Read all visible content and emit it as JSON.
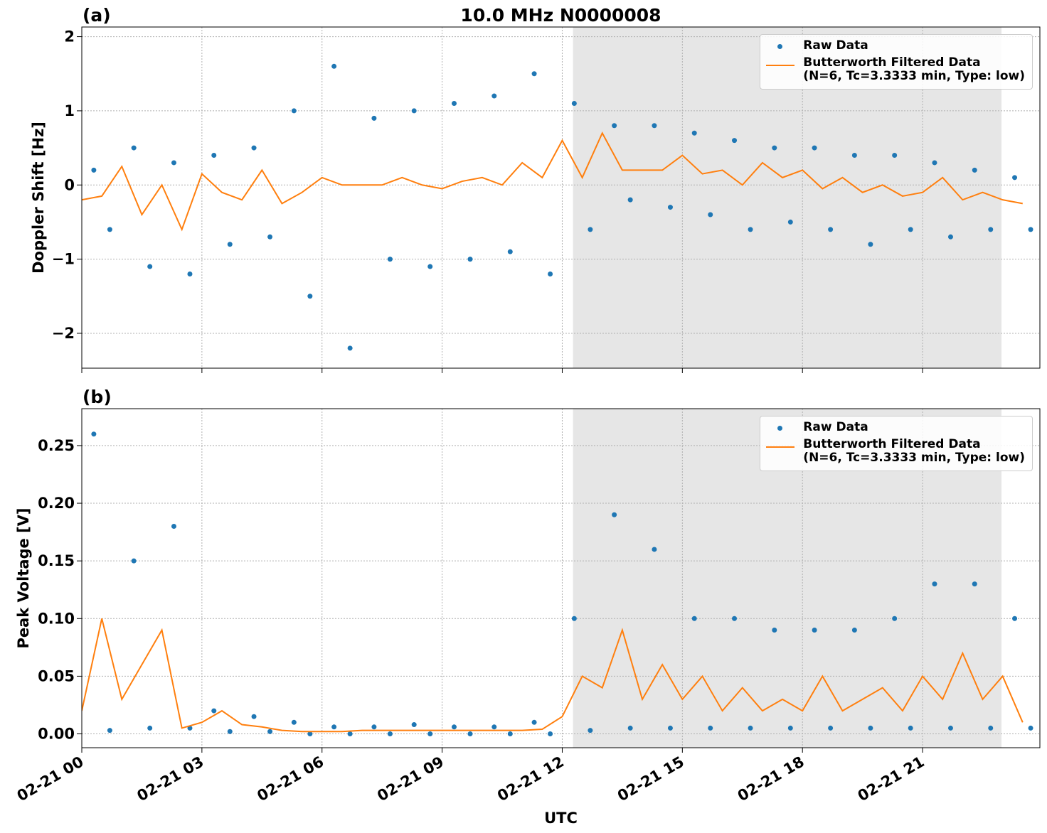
{
  "chart_data": [
    {
      "type": "scatter-line",
      "title": "10.0 MHz N0000008",
      "panel_label": "(a)",
      "ylabel": "Doppler Shift [Hz]",
      "xlim": [
        0,
        23.93
      ],
      "xticks": [
        0,
        3,
        6,
        9,
        12,
        15,
        18,
        21
      ],
      "ylim": [
        -2.47,
        2.13
      ],
      "yticks": [
        {
          "value": -2,
          "label": "−2"
        },
        {
          "value": -1,
          "label": "−1"
        },
        0,
        1,
        2
      ],
      "grid": true,
      "shaded_span": [
        12.27,
        22.97
      ],
      "legend": "upper right",
      "series": [
        {
          "name": "Raw Data",
          "color": "#1f77b4",
          "kind": "points",
          "x": [
            0.3,
            1.3,
            2.3,
            3.3,
            4.3,
            5.3,
            6.3,
            7.3,
            8.3,
            9.3,
            10.3,
            11.3,
            12.3,
            13.3,
            14.3,
            15.3,
            16.3,
            17.3,
            18.3,
            19.3,
            20.3,
            21.3,
            22.3,
            23.3,
            0.7,
            1.7,
            2.7,
            3.7,
            4.7,
            5.7,
            6.7,
            7.7,
            8.7,
            9.7,
            10.7,
            11.7,
            12.7,
            13.7,
            14.7,
            15.7,
            16.7,
            17.7,
            18.7,
            19.7,
            20.7,
            21.7,
            22.7,
            23.7
          ],
          "values": [
            0.2,
            0.5,
            0.3,
            0.4,
            0.5,
            1.0,
            1.6,
            0.9,
            1.0,
            1.1,
            1.2,
            1.5,
            1.1,
            0.8,
            0.8,
            0.7,
            0.6,
            0.5,
            0.5,
            0.4,
            0.4,
            0.3,
            0.2,
            0.1,
            -0.6,
            -1.1,
            -1.2,
            -0.8,
            -0.7,
            -1.5,
            -2.2,
            -1.0,
            -1.1,
            -1.0,
            -0.9,
            -1.2,
            -0.6,
            -0.2,
            -0.3,
            -0.4,
            -0.6,
            -0.5,
            -0.6,
            -0.8,
            -0.6,
            -0.7,
            -0.6,
            -0.6
          ]
        },
        {
          "name": "Butterworth Filtered Data\n(N=6, Tc=3.3333 min, Type: low)",
          "color": "#ff7f0e",
          "kind": "line",
          "x": [
            0,
            0.5,
            1,
            1.5,
            2,
            2.5,
            3,
            3.5,
            4,
            4.5,
            5,
            5.5,
            6,
            6.5,
            7,
            7.5,
            8,
            8.5,
            9,
            9.5,
            10,
            10.5,
            11,
            11.5,
            12,
            12.5,
            13,
            13.5,
            14,
            14.5,
            15,
            15.5,
            16,
            16.5,
            17,
            17.5,
            18,
            18.5,
            19,
            19.5,
            20,
            20.5,
            21,
            21.5,
            22,
            22.5,
            23,
            23.5
          ],
          "values": [
            -0.2,
            -0.15,
            0.25,
            -0.4,
            0.0,
            -0.6,
            0.15,
            -0.1,
            -0.2,
            0.2,
            -0.25,
            -0.1,
            0.1,
            0.0,
            0.0,
            0.0,
            0.1,
            0.0,
            -0.05,
            0.05,
            0.1,
            0.0,
            0.3,
            0.1,
            0.6,
            0.1,
            0.7,
            0.2,
            0.2,
            0.2,
            0.4,
            0.15,
            0.2,
            0.0,
            0.3,
            0.1,
            0.2,
            -0.05,
            0.1,
            -0.1,
            0.0,
            -0.15,
            -0.1,
            0.1,
            -0.2,
            -0.1,
            -0.2,
            -0.25
          ]
        }
      ]
    },
    {
      "type": "scatter-line",
      "panel_label": "(b)",
      "ylabel": "Peak Voltage [V]",
      "xlabel": "UTC",
      "xlim": [
        0,
        23.93
      ],
      "xticks": [
        {
          "value": 0,
          "label": "02-21 00"
        },
        {
          "value": 3,
          "label": "02-21 03"
        },
        {
          "value": 6,
          "label": "02-21 06"
        },
        {
          "value": 9,
          "label": "02-21 09"
        },
        {
          "value": 12,
          "label": "02-21 12"
        },
        {
          "value": 15,
          "label": "02-21 15"
        },
        {
          "value": 18,
          "label": "02-21 18"
        },
        {
          "value": 21,
          "label": "02-21 21"
        }
      ],
      "ylim": [
        -0.012,
        0.282
      ],
      "yticks": [
        {
          "value": 0,
          "label": "0.00"
        },
        0.05,
        {
          "value": 0.1,
          "label": "0.10"
        },
        0.15,
        {
          "value": 0.2,
          "label": "0.20"
        },
        0.25
      ],
      "grid": true,
      "shaded_span": [
        12.27,
        22.97
      ],
      "legend": "upper right",
      "series": [
        {
          "name": "Raw Data",
          "color": "#1f77b4",
          "kind": "points",
          "x": [
            0.3,
            1.3,
            2.3,
            3.3,
            4.3,
            5.3,
            6.3,
            7.3,
            8.3,
            9.3,
            10.3,
            11.3,
            12.3,
            13.3,
            14.3,
            15.3,
            16.3,
            17.3,
            18.3,
            19.3,
            20.3,
            21.3,
            22.3,
            23.3,
            0.7,
            1.7,
            2.7,
            3.7,
            4.7,
            5.7,
            6.7,
            7.7,
            8.7,
            9.7,
            10.7,
            11.7,
            12.7,
            13.7,
            14.7,
            15.7,
            16.7,
            17.7,
            18.7,
            19.7,
            20.7,
            21.7,
            22.7,
            23.7
          ],
          "values": [
            0.26,
            0.15,
            0.18,
            0.02,
            0.015,
            0.01,
            0.006,
            0.006,
            0.008,
            0.006,
            0.006,
            0.01,
            0.1,
            0.19,
            0.16,
            0.1,
            0.1,
            0.09,
            0.09,
            0.09,
            0.1,
            0.13,
            0.13,
            0.1,
            0.003,
            0.005,
            0.005,
            0.002,
            0.002,
            0.0,
            0.0,
            0.0,
            0.0,
            0.0,
            0.0,
            0.0,
            0.003,
            0.005,
            0.005,
            0.005,
            0.005,
            0.005,
            0.005,
            0.005,
            0.005,
            0.005,
            0.005,
            0.005
          ]
        },
        {
          "name": "Butterworth Filtered Data\n(N=6, Tc=3.3333 min, Type: low)",
          "color": "#ff7f0e",
          "kind": "line",
          "x": [
            0,
            0.5,
            1,
            1.5,
            2,
            2.5,
            3,
            3.5,
            4,
            4.5,
            5,
            5.5,
            6,
            6.5,
            7,
            7.5,
            8,
            8.5,
            9,
            9.5,
            10,
            10.5,
            11,
            11.5,
            12,
            12.5,
            13,
            13.5,
            14,
            14.5,
            15,
            15.5,
            16,
            16.5,
            17,
            17.5,
            18,
            18.5,
            19,
            19.5,
            20,
            20.5,
            21,
            21.5,
            22,
            22.5,
            23,
            23.5
          ],
          "values": [
            0.02,
            0.1,
            0.03,
            0.06,
            0.09,
            0.005,
            0.01,
            0.02,
            0.008,
            0.006,
            0.003,
            0.002,
            0.002,
            0.002,
            0.003,
            0.003,
            0.003,
            0.003,
            0.003,
            0.003,
            0.003,
            0.003,
            0.003,
            0.004,
            0.015,
            0.05,
            0.04,
            0.09,
            0.03,
            0.06,
            0.03,
            0.05,
            0.02,
            0.04,
            0.02,
            0.03,
            0.02,
            0.05,
            0.02,
            0.03,
            0.04,
            0.02,
            0.05,
            0.03,
            0.07,
            0.03,
            0.05,
            0.01
          ]
        }
      ]
    }
  ]
}
